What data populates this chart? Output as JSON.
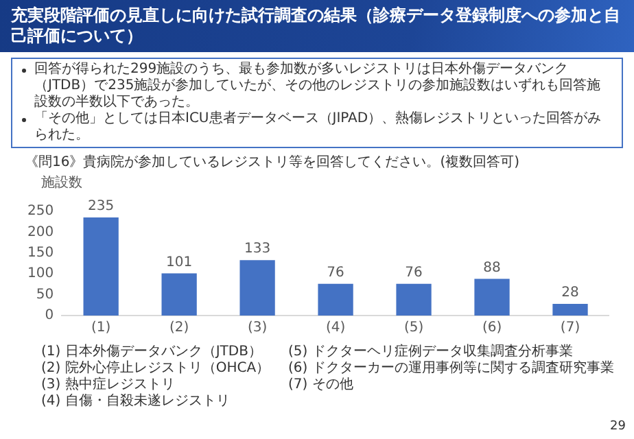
{
  "chart_data": {
    "type": "bar",
    "title": "充実段階評価の見直しに向けた試行調査の結果（診療データ登録制度への参加と自己評価について）",
    "ylabel": "施設数",
    "categories": [
      "(1)",
      "(2)",
      "(3)",
      "(4)",
      "(5)",
      "(6)",
      "(7)"
    ],
    "values": [
      235,
      101,
      133,
      76,
      76,
      88,
      28
    ],
    "color": "#4472c4",
    "ylim": [
      0,
      250
    ],
    "yticks": [
      0,
      50,
      100,
      150,
      200,
      250
    ],
    "grid": false,
    "legend": false,
    "data_labels": true,
    "annotations": [
      "回答が得られた299施設のうち、最も参加数が多いレジストリは日本外傷データバンク（JTDB）で235施設が参加していたが、その他のレジストリの参加施設数はいずれも回答施設数の半数以下であった。",
      "「その他」としては日本ICU患者データベース（JIPAD）、熱傷レジストリといった回答がみられた。",
      "《問16》貴病院が参加しているレジストリ等を回答してください。(複数回答可)",
      "(1) 日本外傷データバンク（JTDB）",
      "(2) 院外心停止レジストリ（OHCA）",
      "(3) 熱中症レジストリ",
      "(4) 自傷・自殺未遂レジストリ",
      "(5) ドクターヘリ症例データ収集調査分析事業",
      "(6) ドクターカーの運用事例等に関する調査研究事業",
      "(7) その他",
      "29"
    ]
  }
}
